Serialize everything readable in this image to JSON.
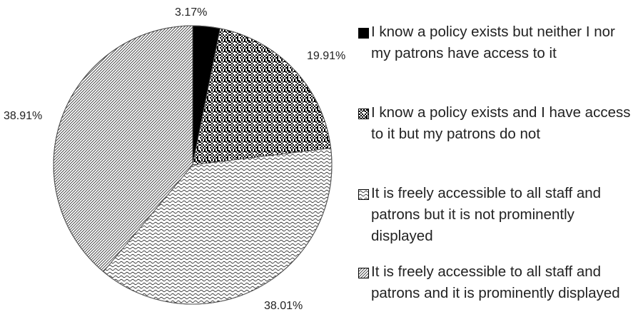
{
  "chart_data": {
    "type": "pie",
    "title": "",
    "start_angle_deg": 0,
    "direction": "clockwise",
    "legend_position": "right",
    "slices": [
      {
        "label": "I know a policy exists but neither I nor my patrons have access to it",
        "value": 3.17,
        "value_label": "3.17%",
        "pattern": "solid-black"
      },
      {
        "label": "I know a policy exists and I have access to it but my patrons do not",
        "value": 19.91,
        "value_label": "19.91%",
        "pattern": "dotted-checker"
      },
      {
        "label": "It is freely accessible to all staff and patrons but it is not prominently displayed",
        "value": 38.01,
        "value_label": "38.01%",
        "pattern": "wave"
      },
      {
        "label": "It is freely accessible to all staff and patrons and it is prominently displayed",
        "value": 38.91,
        "value_label": "38.91%",
        "pattern": "diagonal-lines"
      }
    ]
  }
}
